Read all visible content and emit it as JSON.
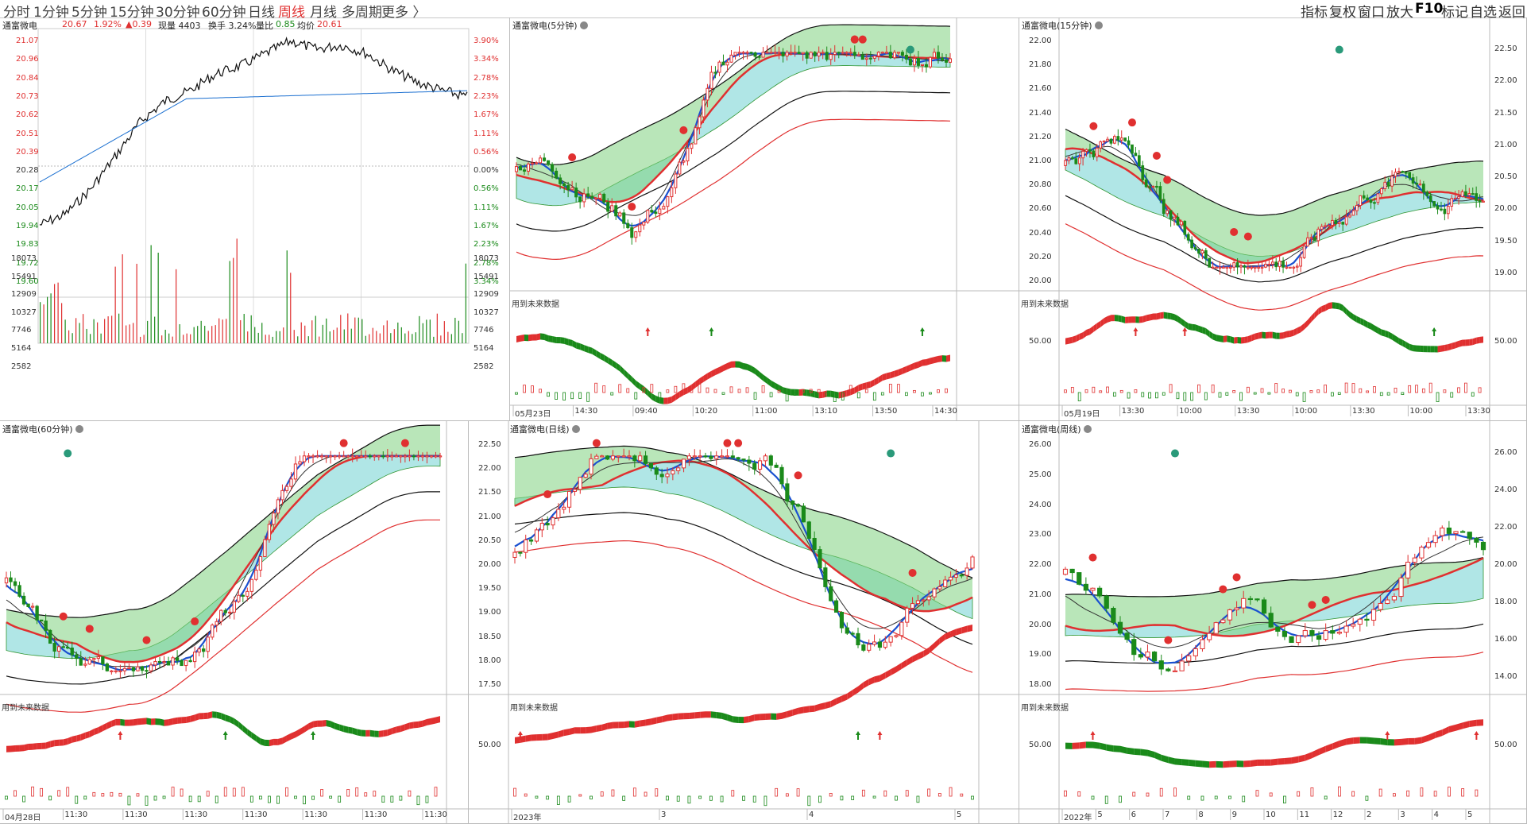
{
  "periods": [
    {
      "label": "分时"
    },
    {
      "label": "1分钟"
    },
    {
      "label": "5分钟"
    },
    {
      "label": "15分钟"
    },
    {
      "label": "30分钟"
    },
    {
      "label": "60分钟"
    },
    {
      "label": "日线"
    },
    {
      "label": "周线",
      "active": true
    },
    {
      "label": "月线"
    },
    {
      "label": "多周期"
    },
    {
      "label": "更多 〉"
    }
  ],
  "right_tools": [
    "指标",
    "复权",
    "窗口",
    "放大",
    "F10",
    "标记",
    "自选",
    "返回"
  ],
  "colors": {
    "up": "#e03030",
    "down": "#1a8a1a",
    "ma": "#1a50d0",
    "fill_green": "#7fd17f",
    "fill_cyan": "#a8e4e4"
  },
  "intraday": {
    "stock_name": "通富微电",
    "price": "20.67",
    "change_pct": "1.92%",
    "change": "▲0.39",
    "volume_label": "现量 4403",
    "turnover": "换手 3.24%",
    "vol_ratio_label": "量比",
    "vol_ratio": "0.85",
    "avg_label": "均价",
    "avg": "20.61",
    "price_ticks": [
      "21.07",
      "20.96",
      "20.84",
      "20.73",
      "20.62",
      "20.51",
      "20.39",
      "20.28",
      "20.17",
      "20.05",
      "19.94",
      "19.83",
      "19.72",
      "19.60"
    ],
    "pct_ticks": [
      "3.90%",
      "3.34%",
      "2.78%",
      "2.23%",
      "1.67%",
      "1.11%",
      "0.56%",
      "0.00%",
      "0.56%",
      "1.11%",
      "1.67%",
      "2.23%",
      "2.78%",
      "3.34%"
    ],
    "vol_ticks": [
      "18073",
      "15491",
      "12909",
      "10327",
      "7746",
      "5164",
      "2582"
    ]
  },
  "panels": [
    {
      "title": "通富微电(5分钟)",
      "note": "用到未来数据",
      "xticks": [
        "05月23日",
        "14:30",
        "09:40",
        "10:20",
        "11:00",
        "13:10",
        "13:50",
        "14:30"
      ]
    },
    {
      "title": "通富微电(15分钟)",
      "note": "用到未来数据",
      "yticks": [
        "22.00",
        "21.80",
        "21.60",
        "21.40",
        "21.20",
        "21.00",
        "20.80",
        "20.60",
        "20.40",
        "20.20",
        "20.00"
      ],
      "right_yticks": [
        "22.50",
        "22.00",
        "21.50",
        "21.00",
        "20.50",
        "20.00",
        "19.50",
        "19.00"
      ],
      "sub_tick": "50.00",
      "xticks": [
        "05月19日",
        "13:30",
        "10:00",
        "13:30",
        "10:00",
        "13:30",
        "10:00",
        "13:30"
      ]
    },
    {
      "title": "通富微电(60分钟)",
      "note": "用到未来数据",
      "xticks": [
        "04月28日",
        "11:30",
        "11:30",
        "11:30",
        "11:30",
        "11:30",
        "11:30",
        "11:30"
      ]
    },
    {
      "title": "通富微电(日线)",
      "note": "用到未来数据",
      "yticks": [
        "22.50",
        "22.00",
        "21.50",
        "21.00",
        "20.50",
        "20.00",
        "19.50",
        "19.00",
        "18.50",
        "18.00",
        "17.50"
      ],
      "sub_tick": "50.00",
      "xticks": [
        "2023年",
        "3",
        "4",
        "5"
      ]
    },
    {
      "title": "通富微电(周线)",
      "note": "用到未来数据",
      "yticks": [
        "26.00",
        "25.00",
        "24.00",
        "23.00",
        "22.00",
        "21.00",
        "20.00",
        "19.00",
        "18.00"
      ],
      "right_yticks": [
        "26.00",
        "24.00",
        "22.00",
        "20.00",
        "18.00",
        "16.00",
        "14.00"
      ],
      "sub_tick": "50.00",
      "xticks": [
        "2022年",
        "5",
        "6",
        "7",
        "8",
        "9",
        "10",
        "11",
        "12",
        "2",
        "3",
        "4",
        "5"
      ]
    }
  ]
}
